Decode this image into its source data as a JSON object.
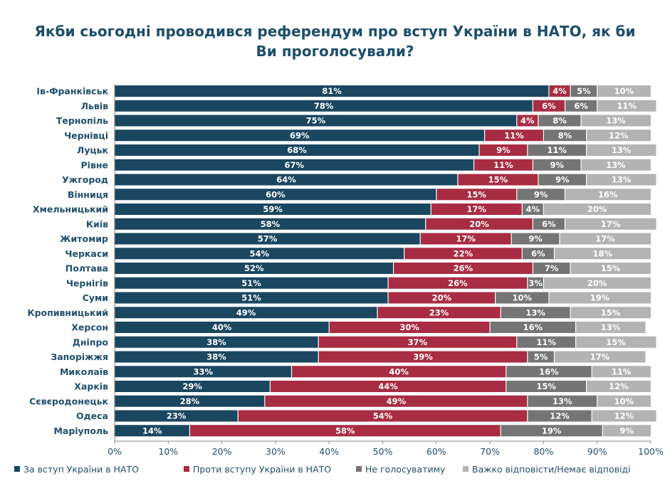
{
  "chart_data": {
    "type": "bar",
    "orientation": "horizontal",
    "stacked": true,
    "title": "Якби сьогодні проводився референдум про вступ України в НАТО, як би Ви проголосували?",
    "title_lines": [
      "Якби сьогодні проводився референдум про вступ України в НАТО, як би",
      "Ви проголосували?"
    ],
    "categories": [
      "Ів-Франківськ",
      "Львів",
      "Тернопіль",
      "Чернівці",
      "Луцьк",
      "Рівне",
      "Ужгород",
      "Вінниця",
      "Хмельницький",
      "Київ",
      "Житомир",
      "Черкаси",
      "Полтава",
      "Чернігів",
      "Суми",
      "Кропивницький",
      "Херсон",
      "Дніпро",
      "Запоріжжя",
      "Миколаїв",
      "Харків",
      "Сєвєродонецьк",
      "Одеса",
      "Маріуполь"
    ],
    "series": [
      {
        "name": "За вступ України в НАТО",
        "color": "#1a4660",
        "values": [
          81,
          78,
          75,
          69,
          68,
          67,
          64,
          60,
          59,
          58,
          57,
          54,
          52,
          51,
          51,
          49,
          40,
          38,
          38,
          33,
          29,
          28,
          23,
          14
        ]
      },
      {
        "name": "Проти вступу України в НАТО",
        "color": "#a82c42",
        "values": [
          4,
          6,
          4,
          11,
          9,
          11,
          15,
          15,
          17,
          20,
          17,
          22,
          26,
          26,
          20,
          23,
          30,
          37,
          39,
          40,
          44,
          49,
          54,
          58
        ]
      },
      {
        "name": "Не голосуватиму",
        "color": "#757575",
        "values": [
          5,
          6,
          8,
          8,
          11,
          9,
          9,
          9,
          4,
          6,
          9,
          6,
          7,
          3,
          10,
          13,
          16,
          11,
          5,
          16,
          15,
          13,
          12,
          19
        ]
      },
      {
        "name": "Важко відповісти/Немає відповіді",
        "color": "#b3b3b3",
        "values": [
          10,
          11,
          13,
          12,
          13,
          13,
          13,
          16,
          20,
          17,
          17,
          18,
          15,
          20,
          19,
          15,
          13,
          15,
          17,
          11,
          12,
          10,
          12,
          9
        ]
      }
    ],
    "value_suffix": "%",
    "xlim": [
      0,
      100
    ],
    "x_ticks": [
      "0%",
      "10%",
      "20%",
      "30%",
      "40%",
      "50%",
      "60%",
      "70%",
      "80%",
      "90%",
      "100%"
    ],
    "legend_position": "bottom",
    "grid": false
  }
}
